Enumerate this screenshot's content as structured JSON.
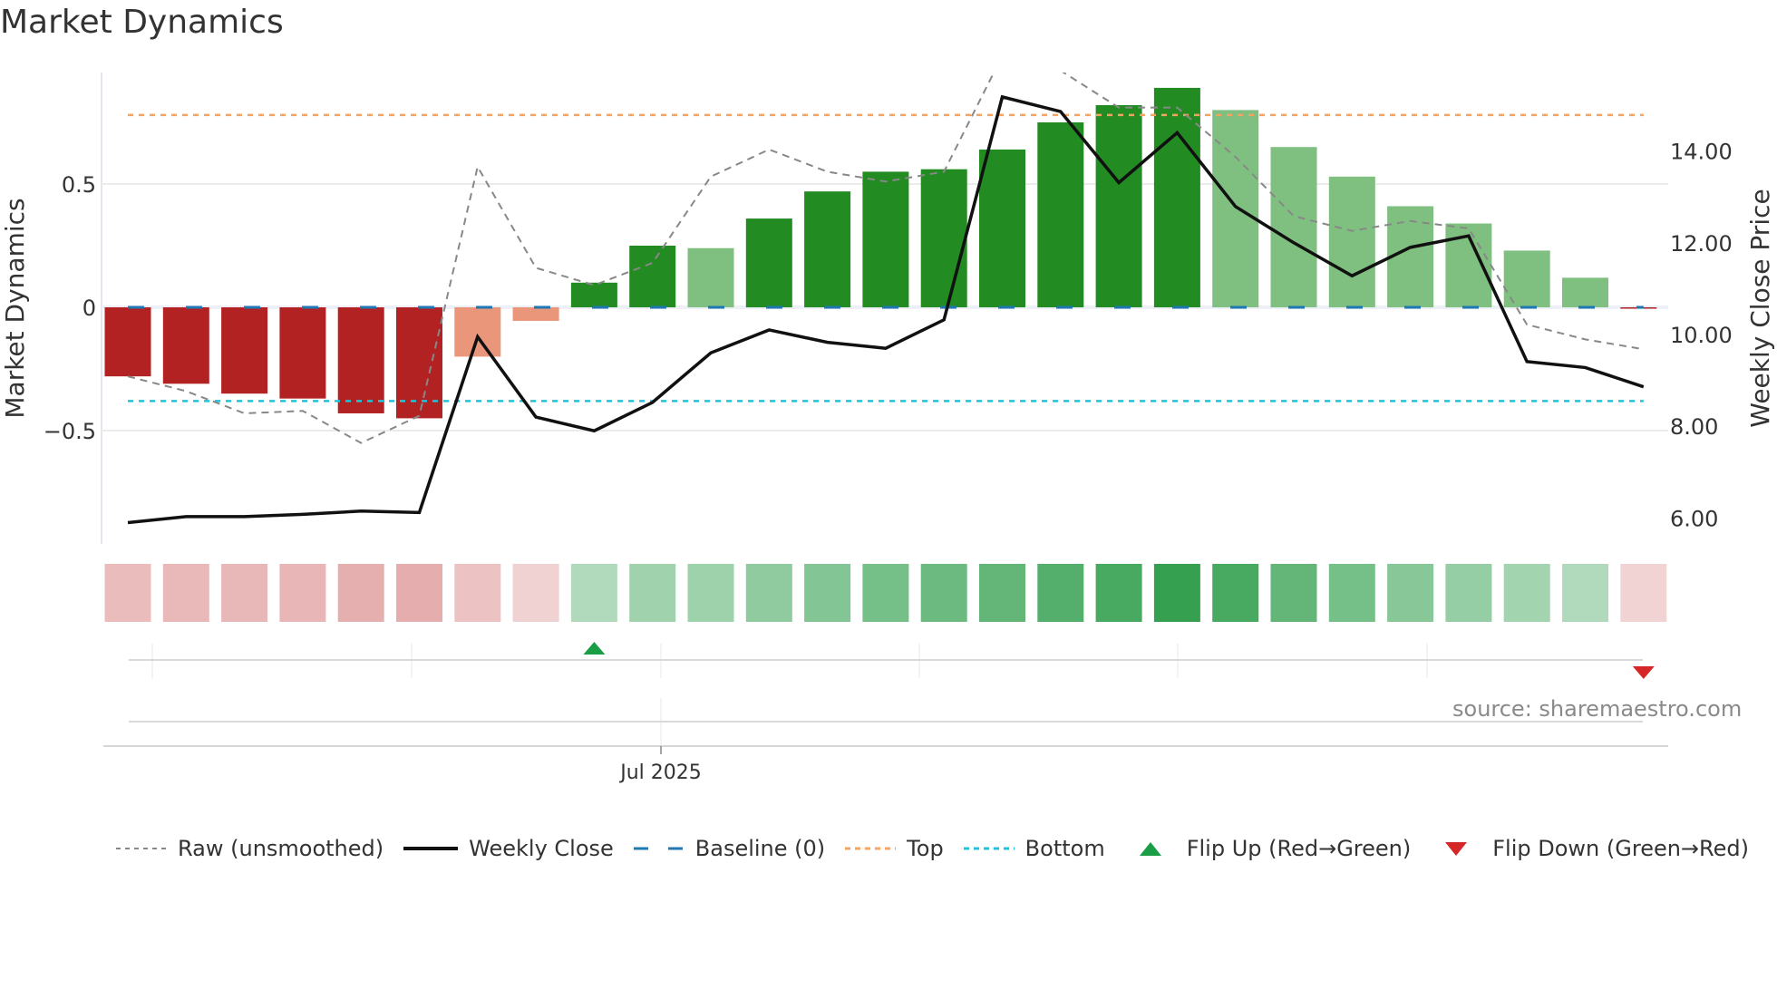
{
  "title": "Market Dynamics",
  "source_label": "source: sharemaestro.com",
  "axes": {
    "left_label": "Market Dynamics",
    "right_label": "Weekly Close Price",
    "left_ticks": [
      {
        "v": 0.5,
        "label": "0.5"
      },
      {
        "v": 0,
        "label": "0"
      },
      {
        "v": -0.5,
        "label": "−0.5"
      }
    ],
    "right_ticks": [
      {
        "v": 14,
        "label": "14.00"
      },
      {
        "v": 12,
        "label": "12.00"
      },
      {
        "v": 10,
        "label": "10.00"
      },
      {
        "v": 8,
        "label": "8.00"
      },
      {
        "v": 6,
        "label": "6.00"
      }
    ],
    "x_tick_label": "Jul 2025"
  },
  "colors": {
    "strong_green": "#228b22",
    "light_green": "#7fbf7f",
    "strong_red": "#b22222",
    "light_red": "#e9967a",
    "close_line": "#111111",
    "raw_line": "#888888",
    "baseline": "#1f77b4",
    "top": "#f4a460",
    "bottom": "#22c3d9",
    "flip_up": "#1a9e45",
    "flip_down": "#d62728"
  },
  "legend": [
    {
      "key": "raw",
      "label": "Raw (unsmoothed)"
    },
    {
      "key": "close",
      "label": "Weekly Close"
    },
    {
      "key": "baseline",
      "label": "Baseline (0)"
    },
    {
      "key": "top",
      "label": "Top"
    },
    {
      "key": "bottom",
      "label": "Bottom"
    },
    {
      "key": "flip_up",
      "label": "Flip Up (Red→Green)"
    },
    {
      "key": "flip_down",
      "label": "Flip Down (Green→Red)"
    }
  ],
  "chart_data": {
    "type": "bar",
    "title": "Market Dynamics",
    "xlabel": "",
    "ylabel": "Market Dynamics",
    "ylabel_right": "Weekly Close Price",
    "ylim": [
      -0.88,
      0.98
    ],
    "ylim_right": [
      5.5,
      15.5
    ],
    "x_tick_labels": [
      "Jul 2025"
    ],
    "grid": true,
    "legend_position": "bottom",
    "reference_lines": {
      "baseline": 0,
      "top": 0.78,
      "bottom": -0.38
    },
    "series": [
      {
        "name": "Market Dynamics (smoothed)",
        "type": "bar",
        "values": [
          -0.28,
          -0.31,
          -0.35,
          -0.37,
          -0.43,
          -0.45,
          -0.2,
          -0.055,
          0.1,
          0.25,
          0.24,
          0.36,
          0.47,
          0.55,
          0.56,
          0.64,
          0.75,
          0.82,
          0.89,
          0.8,
          0.65,
          0.53,
          0.41,
          0.34,
          0.23,
          0.12,
          -0.005
        ],
        "shade": [
          "strong",
          "strong",
          "strong",
          "strong",
          "strong",
          "strong",
          "light",
          "light",
          "strong",
          "strong",
          "light",
          "strong",
          "strong",
          "strong",
          "strong",
          "strong",
          "strong",
          "strong",
          "strong",
          "light",
          "light",
          "light",
          "light",
          "light",
          "light",
          "light",
          "strong"
        ]
      },
      {
        "name": "Raw (unsmoothed)",
        "type": "line",
        "axis": "left",
        "values": [
          -0.28,
          -0.34,
          -0.43,
          -0.42,
          -0.55,
          -0.44,
          0.57,
          0.16,
          0.09,
          0.18,
          0.53,
          0.64,
          0.55,
          0.51,
          0.55,
          1.02,
          0.96,
          0.81,
          0.81,
          0.61,
          0.37,
          0.31,
          0.35,
          0.32,
          -0.07,
          -0.13,
          -0.17
        ]
      },
      {
        "name": "Weekly Close",
        "type": "line",
        "axis": "right",
        "values": [
          5.9,
          6.03,
          6.03,
          6.08,
          6.15,
          6.12,
          9.95,
          8.2,
          7.9,
          8.52,
          9.6,
          10.1,
          9.83,
          9.7,
          10.32,
          15.18,
          14.86,
          13.31,
          14.4,
          12.79,
          12.0,
          11.28,
          11.9,
          12.15,
          9.41,
          9.28,
          8.86
        ]
      }
    ],
    "heat_strip": [
      -0.28,
      -0.31,
      -0.33,
      -0.35,
      -0.4,
      -0.42,
      -0.25,
      -0.12,
      0.15,
      0.25,
      0.26,
      0.33,
      0.4,
      0.48,
      0.52,
      0.58,
      0.65,
      0.72,
      0.85,
      0.72,
      0.58,
      0.48,
      0.38,
      0.3,
      0.22,
      0.16,
      -0.1
    ],
    "flips": [
      {
        "type": "up",
        "index": 8
      },
      {
        "type": "down",
        "index": 26
      }
    ]
  }
}
